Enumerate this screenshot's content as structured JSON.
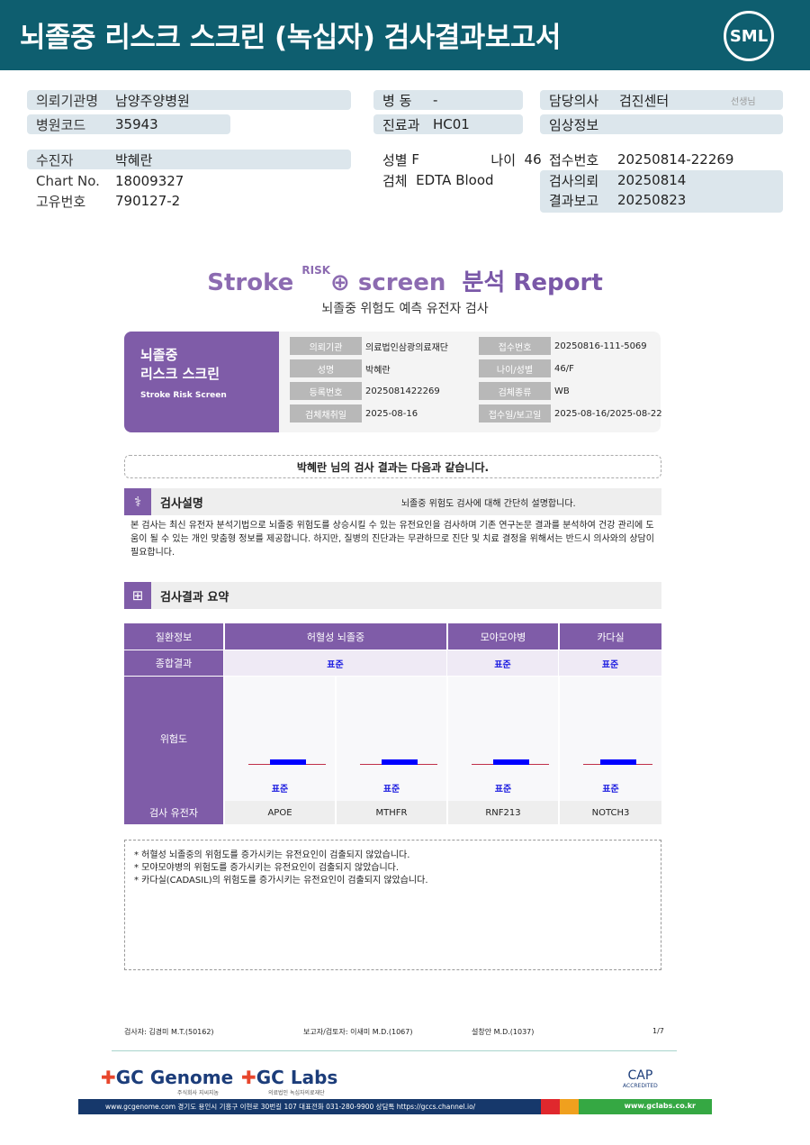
{
  "header": {
    "title": "뇌졸중 리스크 스크린 (녹십자) 검사결과보고서",
    "logo": "SML"
  },
  "info": {
    "institution_label": "의뢰기관명",
    "institution": "남양주양병원",
    "hospital_code_label": "병원코드",
    "hospital_code": "35943",
    "ward_label": "병 동",
    "ward": "-",
    "dept_label": "진료과",
    "dept": "HC01",
    "doctor_label": "담당의사",
    "doctor": "검진센터",
    "doctor_suffix": "선생님",
    "clinical_label": "임상정보",
    "clinical": "",
    "patient_label": "수진자",
    "patient": "박혜란",
    "chart_label": "Chart No.",
    "chart": "18009327",
    "unique_label": "고유번호",
    "unique": "790127-2",
    "sex_label": "성별",
    "sex": "F",
    "age_label": "나이",
    "age": "46",
    "specimen_label": "검체",
    "specimen": "EDTA Blood",
    "receipt_label": "접수번호",
    "receipt": "20250814-22269",
    "request_label": "검사의뢰",
    "request": "20250814",
    "report_label": "결과보고",
    "report": "20250823"
  },
  "brand": {
    "stroke": "Stroke",
    "risk": "RISK",
    "screen": "screen",
    "rest": "분석 Report",
    "subtitle": "뇌졸중 위험도 예측 유전자 검사"
  },
  "card": {
    "title1": "뇌졸중",
    "title2": "리스크 스크린",
    "subtitle": "Stroke Risk Screen",
    "rows": [
      [
        "의뢰기관",
        "의료법인삼광의료재단",
        "접수번호",
        "20250816-111-5069"
      ],
      [
        "성명",
        "박혜란",
        "나이/성별",
        "46/F"
      ],
      [
        "등록번호",
        "2025081422269",
        "검체종류",
        "WB"
      ],
      [
        "검체채취일",
        "2025-08-16",
        "접수일/보고일",
        "2025-08-16/2025-08-22"
      ]
    ]
  },
  "message": "박혜란 님의 검사 결과는 다음과 같습니다.",
  "section1": {
    "title": "검사설명",
    "summary": "뇌졸중 위험도 검사에 대해 간단히 설명합니다.",
    "body": "본 검사는 최신 유전자 분석기법으로 뇌졸중 위험도를 상승시킬 수 있는 유전요인을 검사하며 기존 연구논문 결과를 분석하여 건강 관리에 도움이 될 수 있는 개인 맞춤형 정보를 제공합니다. 하지만, 질병의 진단과는 무관하므로 진단 및 치료 결정을 위해서는 반드시 의사와의 상담이 필요합니다."
  },
  "section2": {
    "title": "검사결과 요약"
  },
  "table": {
    "h_disease": "질환정보",
    "d1": "허혈성 뇌졸중",
    "d2": "모야모야병",
    "d3": "카다실",
    "h_overall": "종합결과",
    "o1": "표준",
    "o2": "표준",
    "o3": "표준",
    "h_risk": "위험도",
    "risk": [
      "표준",
      "표준",
      "표준",
      "표준"
    ],
    "h_gene": "검사 유전자",
    "genes": [
      "APOE",
      "MTHFR",
      "RNF213",
      "NOTCH3"
    ],
    "risk_color": "#0000ff"
  },
  "notes": [
    "* 허혈성 뇌졸중의 위험도를 증가시키는 유전요인이 검출되지 않았습니다.",
    "* 모야모야병의 위험도를 증가시키는 유전요인이 검출되지 않았습니다.",
    "* 카다실(CADASIL)의 위험도를 증가시키는 유전요인이 검출되지 않았습니다."
  ],
  "footer": {
    "tester": "검사자: 김경미 M.T.(50162)",
    "reporter": "보고자/검토자: 이새미 M.D.(1067)",
    "doctor": "설창안 M.D.(1037)",
    "page": "1/7",
    "gc_genome": "GC Genome",
    "gc_genome_sub": "주식회사 지씨지놈",
    "gc_labs": "GC Labs",
    "gc_labs_sub": "의료법인 녹십자의료재단",
    "cap": "CAP",
    "cap_sub": "ACCREDITED",
    "bar_text": "www.gcgenome.com 경기도 용인시 기흥구 이현로 30번길 107 대표전화 031-280-9900 상담톡 https://gccs.channel.io/",
    "bar_right": "www.gclabs.co.kr"
  }
}
